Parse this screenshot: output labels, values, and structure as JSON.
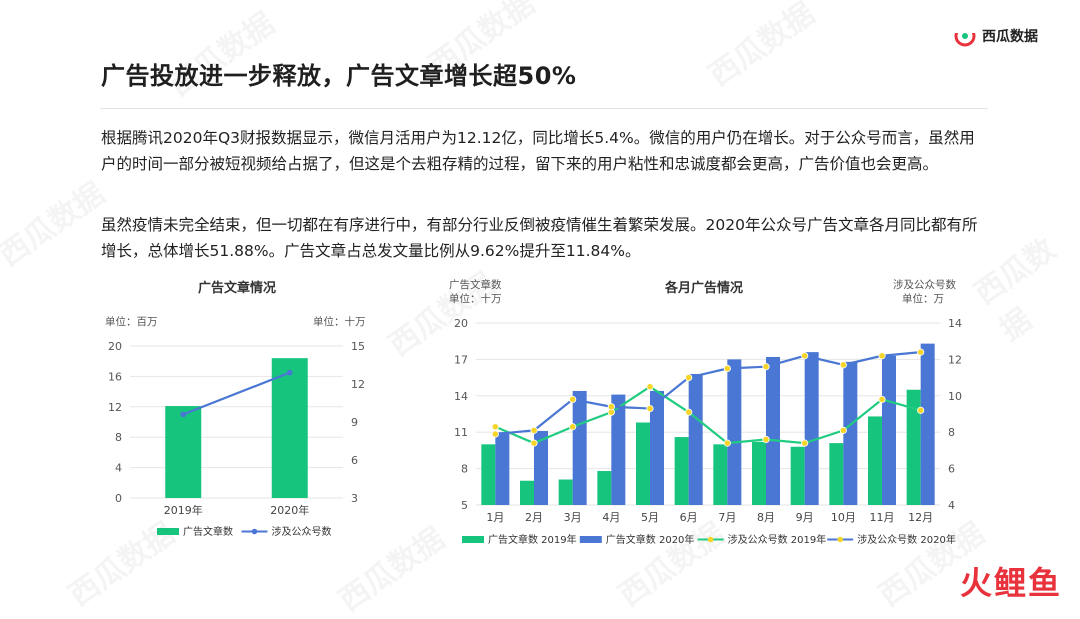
{
  "brand": {
    "name": "西瓜数据"
  },
  "title": "广告投放进一步释放，广告文章增长超50%",
  "paragraphs": [
    "根据腾讯2020年Q3财报数据显示，微信月活用户为12.12亿，同比增长5.4%。微信的用户仍在增长。对于公众号而言，虽然用户的时间一部分被短视频给占据了，但这是个去粗存精的过程，留下来的用户粘性和忠诚度都会更高，广告价值也会更高。",
    "虽然疫情未完全结束，但一切都在有序进行中，有部分行业反倒被疫情催生着繁荣发展。2020年公众号广告文章各月同比都有所增长，总体增长51.88%。广告文章占总发文量比例从9.62%提升至11.84%。"
  ],
  "watermark_text": "西瓜数据",
  "corner_logo": "火鲤鱼",
  "colors": {
    "green": "#17c47e",
    "blue": "#4a77d4",
    "green_line": "#20cc80",
    "yellow_marker": "#f6d52a"
  },
  "chart_data": [
    {
      "type": "bar",
      "title": "广告文章情况",
      "left_unit": "单位：百万",
      "right_unit": "单位：十万",
      "categories": [
        "2019年",
        "2020年"
      ],
      "series": [
        {
          "name": "广告文章数",
          "type": "bar",
          "axis": "left",
          "values": [
            12.1,
            18.4
          ]
        },
        {
          "name": "涉及公众号数",
          "type": "line",
          "axis": "right",
          "values": [
            9.6,
            12.9
          ]
        }
      ],
      "ylim_left": [
        0,
        20
      ],
      "yticks_left": [
        0,
        4,
        8,
        12,
        16,
        20
      ],
      "ylim_right": [
        3,
        15
      ],
      "yticks_right": [
        3,
        6,
        9,
        12,
        15
      ],
      "legend": "bottom"
    },
    {
      "type": "bar",
      "title": "各月广告情况",
      "left_unit_line1": "广告文章数",
      "left_unit_line2": "单位：十万",
      "right_unit_line1": "涉及公众号数",
      "right_unit_line2": "单位：万",
      "categories": [
        "1月",
        "2月",
        "3月",
        "4月",
        "5月",
        "6月",
        "7月",
        "8月",
        "9月",
        "10月",
        "11月",
        "12月"
      ],
      "series": [
        {
          "name": "广告文章数 2019年",
          "type": "bar",
          "axis": "left",
          "values": [
            10.0,
            7.0,
            7.1,
            7.8,
            11.8,
            10.6,
            10.0,
            10.2,
            9.8,
            10.1,
            12.3,
            14.5
          ]
        },
        {
          "name": "广告文章数 2020年",
          "type": "bar",
          "axis": "left",
          "values": [
            11.0,
            11.1,
            14.4,
            14.1,
            14.4,
            15.8,
            17.0,
            17.2,
            17.6,
            16.8,
            17.3,
            18.3
          ]
        },
        {
          "name": "涉及公众号数 2019年",
          "type": "line",
          "axis": "right",
          "values": [
            8.3,
            7.4,
            8.3,
            9.1,
            10.5,
            9.1,
            7.4,
            7.6,
            7.4,
            8.1,
            9.8,
            9.2
          ]
        },
        {
          "name": "涉及公众号数 2020年",
          "type": "line",
          "axis": "right",
          "values": [
            7.9,
            8.1,
            9.8,
            9.4,
            9.3,
            11.0,
            11.5,
            11.6,
            12.2,
            11.7,
            12.2,
            12.4
          ]
        }
      ],
      "ylim_left": [
        5,
        20
      ],
      "yticks_left": [
        5,
        8,
        11,
        14,
        17,
        20
      ],
      "ylim_right": [
        4,
        14
      ],
      "yticks_right": [
        4,
        6,
        8,
        10,
        12,
        14
      ],
      "legend": "bottom"
    }
  ]
}
